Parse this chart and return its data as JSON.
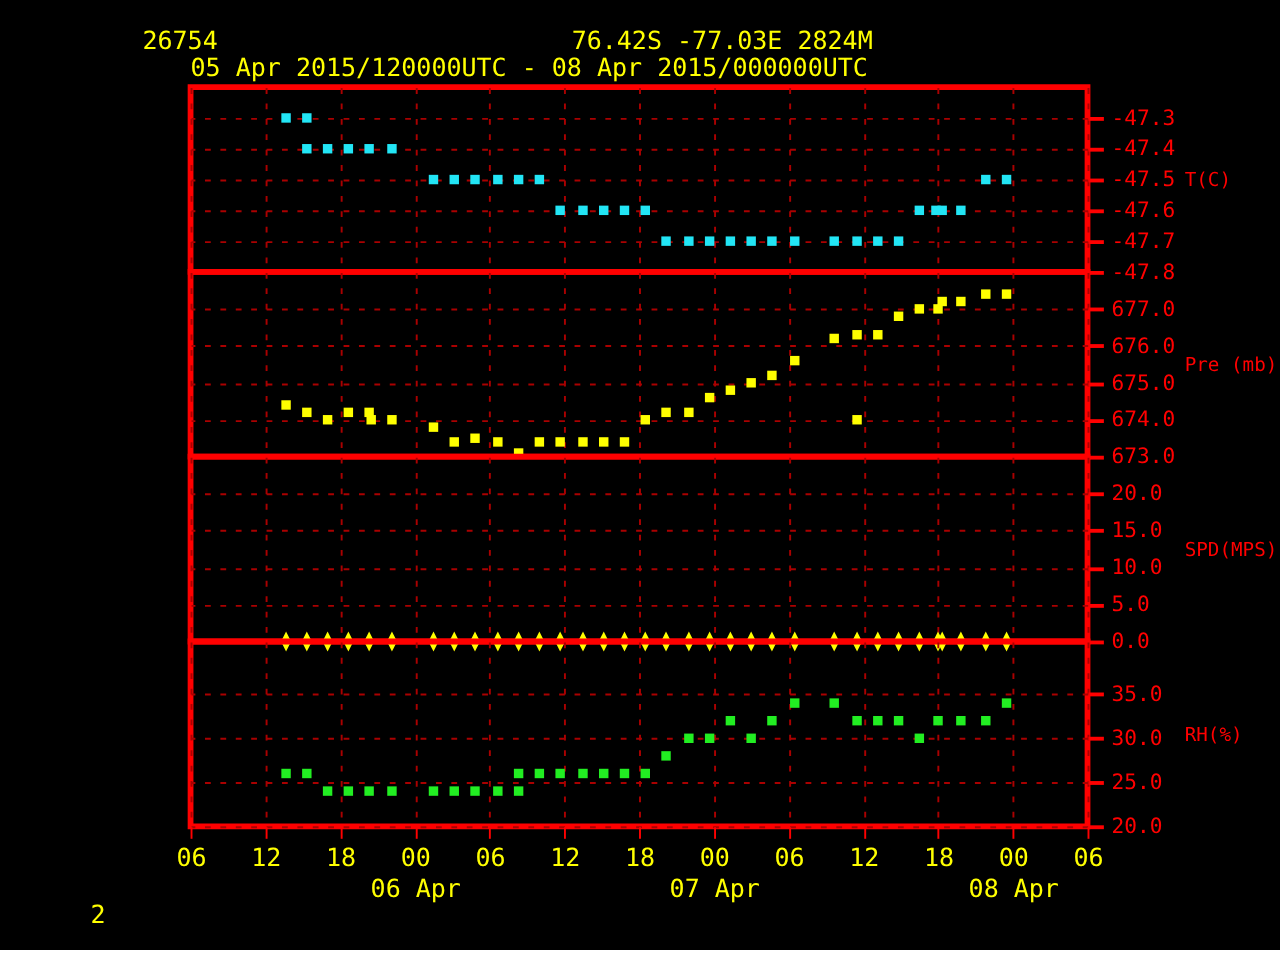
{
  "chart_data": [
    {
      "type": "scatter",
      "title": "26754",
      "subtitle": "05 Apr 2015/120000UTC - 08 Apr 2015/000000UTC",
      "annotations": [
        "76.42S   -77.03E   2824M"
      ],
      "ylabel": "T(C)",
      "marker": "square",
      "grid": true,
      "tick_labels": "y",
      "xlim": [
        "2015-04-05T06:00",
        "2015-04-08T06:00"
      ],
      "xticks": [
        {
          "value": "2015-04-05T06:00",
          "label": null
        },
        {
          "value": "2015-04-05T12:00",
          "label": null
        },
        {
          "value": "2015-04-05T18:00",
          "label": null
        },
        {
          "value": "2015-04-06T00:00",
          "label": null
        },
        {
          "value": "2015-04-06T06:00",
          "label": null
        },
        {
          "value": "2015-04-06T12:00",
          "label": null
        },
        {
          "value": "2015-04-06T18:00",
          "label": null
        },
        {
          "value": "2015-04-07T00:00",
          "label": null
        },
        {
          "value": "2015-04-07T06:00",
          "label": null
        },
        {
          "value": "2015-04-07T12:00",
          "label": null
        },
        {
          "value": "2015-04-07T18:00",
          "label": null
        },
        {
          "value": "2015-04-08T00:00",
          "label": null
        },
        {
          "value": "2015-04-08T06:00",
          "label": null
        }
      ],
      "ylim": [
        -47.8,
        -47.2
      ],
      "yticks": [
        -47.8,
        -47.7,
        -47.6,
        -47.5,
        -47.4,
        -47.3
      ],
      "series": [
        {
          "color": "#22e5f5",
          "x": [
            "2015-04-05T13:40",
            "2015-04-05T15:20",
            "2015-04-05T15:20",
            "2015-04-05T17:00",
            "2015-04-05T18:40",
            "2015-04-05T20:20",
            "2015-04-05T22:10",
            "2015-04-06T01:30",
            "2015-04-06T03:10",
            "2015-04-06T04:50",
            "2015-04-06T06:40",
            "2015-04-06T08:20",
            "2015-04-06T10:00",
            "2015-04-06T11:40",
            "2015-04-06T13:30",
            "2015-04-06T15:10",
            "2015-04-06T16:50",
            "2015-04-06T18:30",
            "2015-04-06T20:10",
            "2015-04-06T22:00",
            "2015-04-06T23:40",
            "2015-04-07T01:20",
            "2015-04-07T03:00",
            "2015-04-07T04:40",
            "2015-04-07T06:30",
            "2015-04-07T09:40",
            "2015-04-07T11:30",
            "2015-04-07T13:10",
            "2015-04-07T14:50",
            "2015-04-07T16:30",
            "2015-04-07T17:50",
            "2015-04-07T18:20",
            "2015-04-07T19:50",
            "2015-04-07T21:50",
            "2015-04-07T23:30"
          ],
          "values": [
            -47.3,
            -47.3,
            -47.4,
            -47.4,
            -47.4,
            -47.4,
            -47.4,
            -47.5,
            -47.5,
            -47.5,
            -47.5,
            -47.5,
            -47.5,
            -47.6,
            -47.6,
            -47.6,
            -47.6,
            -47.6,
            -47.7,
            -47.7,
            -47.7,
            -47.7,
            -47.7,
            -47.7,
            -47.7,
            -47.7,
            -47.7,
            -47.7,
            -47.7,
            -47.6,
            -47.6,
            -47.6,
            -47.6,
            -47.5,
            -47.5
          ]
        }
      ]
    },
    {
      "type": "scatter",
      "ylabel": "Pre (mb)",
      "marker": "square",
      "grid": true,
      "tick_labels": "y",
      "xlim": [
        "2015-04-05T06:00",
        "2015-04-08T06:00"
      ],
      "xticks": [
        {
          "value": "2015-04-05T06:00",
          "label": null
        },
        {
          "value": "2015-04-05T12:00",
          "label": null
        },
        {
          "value": "2015-04-05T18:00",
          "label": null
        },
        {
          "value": "2015-04-06T00:00",
          "label": null
        },
        {
          "value": "2015-04-06T06:00",
          "label": null
        },
        {
          "value": "2015-04-06T12:00",
          "label": null
        },
        {
          "value": "2015-04-06T18:00",
          "label": null
        },
        {
          "value": "2015-04-07T00:00",
          "label": null
        },
        {
          "value": "2015-04-07T06:00",
          "label": null
        },
        {
          "value": "2015-04-07T12:00",
          "label": null
        },
        {
          "value": "2015-04-07T18:00",
          "label": null
        },
        {
          "value": "2015-04-08T00:00",
          "label": null
        },
        {
          "value": "2015-04-08T06:00",
          "label": null
        }
      ],
      "ylim": [
        673,
        678
      ],
      "yticks": [
        {
          "value": 673,
          "label": "673.0"
        },
        {
          "value": 674,
          "label": "674.0"
        },
        {
          "value": 675,
          "label": "675.0"
        },
        {
          "value": 676,
          "label": "676.0"
        },
        {
          "value": 677,
          "label": "677.0"
        }
      ],
      "series": [
        {
          "color": "#ffff00",
          "x": [
            "2015-04-05T13:40",
            "2015-04-05T15:20",
            "2015-04-05T17:00",
            "2015-04-05T18:40",
            "2015-04-05T20:20",
            "2015-04-05T20:30",
            "2015-04-05T22:10",
            "2015-04-06T01:30",
            "2015-04-06T03:10",
            "2015-04-06T04:50",
            "2015-04-06T06:40",
            "2015-04-06T08:20",
            "2015-04-06T10:00",
            "2015-04-06T11:40",
            "2015-04-06T13:30",
            "2015-04-06T15:10",
            "2015-04-06T16:50",
            "2015-04-06T18:30",
            "2015-04-06T20:10",
            "2015-04-06T22:00",
            "2015-04-06T23:40",
            "2015-04-07T01:20",
            "2015-04-07T03:00",
            "2015-04-07T04:40",
            "2015-04-07T06:30",
            "2015-04-07T09:40",
            "2015-04-07T11:30",
            "2015-04-07T11:30",
            "2015-04-07T13:10",
            "2015-04-07T14:50",
            "2015-04-07T16:30",
            "2015-04-07T18:00",
            "2015-04-07T18:20",
            "2015-04-07T19:50",
            "2015-04-07T21:50",
            "2015-04-07T23:30"
          ],
          "values": [
            674.4,
            674.2,
            674.0,
            674.2,
            674.2,
            674.0,
            674.0,
            673.8,
            673.4,
            673.5,
            673.4,
            673.1,
            673.4,
            673.4,
            673.4,
            673.4,
            673.4,
            674.0,
            674.2,
            674.2,
            674.6,
            674.8,
            675.0,
            675.2,
            675.6,
            676.2,
            676.3,
            674.0,
            676.3,
            676.8,
            677.0,
            677.0,
            677.2,
            677.2,
            677.4,
            677.4
          ]
        }
      ]
    },
    {
      "type": "scatter",
      "ylabel": "SPD(MPS)",
      "grid": true,
      "tick_labels": "y",
      "xlim": [
        "2015-04-05T06:00",
        "2015-04-08T06:00"
      ],
      "xticks": [
        {
          "value": "2015-04-05T06:00",
          "label": null
        },
        {
          "value": "2015-04-05T12:00",
          "label": null
        },
        {
          "value": "2015-04-05T18:00",
          "label": null
        },
        {
          "value": "2015-04-06T00:00",
          "label": null
        },
        {
          "value": "2015-04-06T06:00",
          "label": null
        },
        {
          "value": "2015-04-06T12:00",
          "label": null
        },
        {
          "value": "2015-04-06T18:00",
          "label": null
        },
        {
          "value": "2015-04-07T00:00",
          "label": null
        },
        {
          "value": "2015-04-07T06:00",
          "label": null
        },
        {
          "value": "2015-04-07T12:00",
          "label": null
        },
        {
          "value": "2015-04-07T18:00",
          "label": null
        },
        {
          "value": "2015-04-08T00:00",
          "label": null
        },
        {
          "value": "2015-04-08T06:00",
          "label": null
        }
      ],
      "ylim": [
        0,
        25
      ],
      "yticks": [
        {
          "value": 0,
          "label": "0.0"
        },
        {
          "value": 5,
          "label": "5.0"
        },
        {
          "value": 10,
          "label": "10.0"
        },
        {
          "value": 15,
          "label": "15.0"
        },
        {
          "value": 20,
          "label": "20.0"
        }
      ],
      "series": [
        {
          "color": "#ffff00",
          "x": [
            "2015-04-05T13:40",
            "2015-04-05T15:20",
            "2015-04-05T17:00",
            "2015-04-05T18:40",
            "2015-04-05T20:20",
            "2015-04-05T22:10",
            "2015-04-06T01:30",
            "2015-04-06T03:10",
            "2015-04-06T04:50",
            "2015-04-06T06:40",
            "2015-04-06T08:20",
            "2015-04-06T10:00",
            "2015-04-06T11:40",
            "2015-04-06T13:30",
            "2015-04-06T15:10",
            "2015-04-06T16:50",
            "2015-04-06T18:30",
            "2015-04-06T20:10",
            "2015-04-06T22:00",
            "2015-04-06T23:40",
            "2015-04-07T01:20",
            "2015-04-07T03:00",
            "2015-04-07T04:40",
            "2015-04-07T06:30",
            "2015-04-07T09:40",
            "2015-04-07T11:30",
            "2015-04-07T13:10",
            "2015-04-07T14:50",
            "2015-04-07T16:30",
            "2015-04-07T18:00",
            "2015-04-07T18:20",
            "2015-04-07T19:50",
            "2015-04-07T21:50",
            "2015-04-07T23:30"
          ],
          "values": [
            0,
            0,
            0,
            0,
            0,
            0,
            0,
            0,
            0,
            0,
            0,
            0,
            0,
            0,
            0,
            0,
            0,
            0,
            0,
            0,
            0,
            0,
            0,
            0,
            0,
            0,
            0,
            0,
            0,
            0,
            0,
            0,
            0,
            0
          ]
        }
      ]
    },
    {
      "type": "scatter",
      "ylabel": "RH(%)",
      "marker": "square",
      "grid": true,
      "annotations": [
        "2"
      ],
      "xlim": [
        "2015-04-05T06:00",
        "2015-04-08T06:00"
      ],
      "xticks": [
        {
          "value": "2015-04-05T06:00",
          "label": "06"
        },
        {
          "value": "2015-04-05T12:00",
          "label": "12"
        },
        {
          "value": "2015-04-05T18:00",
          "label": "18"
        },
        {
          "value": "2015-04-06T00:00",
          "label": "00\n06 Apr"
        },
        {
          "value": "2015-04-06T06:00",
          "label": "06"
        },
        {
          "value": "2015-04-06T12:00",
          "label": "12"
        },
        {
          "value": "2015-04-06T18:00",
          "label": "18"
        },
        {
          "value": "2015-04-07T00:00",
          "label": "00\n07 Apr"
        },
        {
          "value": "2015-04-07T06:00",
          "label": "06"
        },
        {
          "value": "2015-04-07T12:00",
          "label": "12"
        },
        {
          "value": "2015-04-07T18:00",
          "label": "18"
        },
        {
          "value": "2015-04-08T00:00",
          "label": "00\n08 Apr"
        },
        {
          "value": "2015-04-08T06:00",
          "label": "06"
        }
      ],
      "ylim": [
        20,
        41
      ],
      "yticks": [
        {
          "value": 20,
          "label": "20.0"
        },
        {
          "value": 25,
          "label": "25.0"
        },
        {
          "value": 30,
          "label": "30.0"
        },
        {
          "value": 35,
          "label": "35.0"
        }
      ],
      "series": [
        {
          "color": "#22ee22",
          "x": [
            "2015-04-05T13:40",
            "2015-04-05T15:20",
            "2015-04-05T17:00",
            "2015-04-05T18:40",
            "2015-04-05T20:20",
            "2015-04-05T22:10",
            "2015-04-06T01:30",
            "2015-04-06T03:10",
            "2015-04-06T04:50",
            "2015-04-06T06:40",
            "2015-04-06T08:20",
            "2015-04-06T08:20",
            "2015-04-06T10:00",
            "2015-04-06T11:40",
            "2015-04-06T13:30",
            "2015-04-06T15:10",
            "2015-04-06T16:50",
            "2015-04-06T18:30",
            "2015-04-06T20:10",
            "2015-04-06T22:00",
            "2015-04-06T23:40",
            "2015-04-07T01:20",
            "2015-04-07T03:00",
            "2015-04-07T04:40",
            "2015-04-07T06:30",
            "2015-04-07T09:40",
            "2015-04-07T11:30",
            "2015-04-07T13:10",
            "2015-04-07T14:50",
            "2015-04-07T16:30",
            "2015-04-07T18:00",
            "2015-04-07T19:50",
            "2015-04-07T21:50",
            "2015-04-07T23:30"
          ],
          "values": [
            26,
            26,
            24,
            24,
            24,
            24,
            24,
            24,
            24,
            24,
            24,
            26,
            26,
            26,
            26,
            26,
            26,
            26,
            28,
            30,
            30,
            32,
            30,
            32,
            34,
            34,
            32,
            32,
            32,
            30,
            32,
            32,
            32,
            34
          ]
        }
      ]
    }
  ]
}
